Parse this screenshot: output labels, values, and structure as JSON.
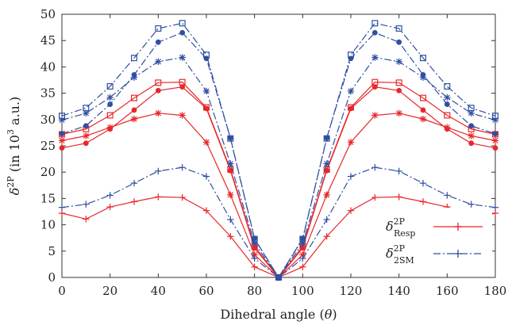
{
  "chart_data": {
    "type": "line",
    "xlabel": "Dihedral angle (θ)",
    "ylabel": "δ2P (in 103 a.u.)",
    "ylabel_parts": {
      "sym": "δ",
      "sup": "2P",
      "pre": " (in 10",
      "exp": "3",
      "post": " a.u.)"
    },
    "xlabel_parts": {
      "text": "Dihedral angle (",
      "var": "θ",
      "close": ")"
    },
    "xlim": [
      0,
      180
    ],
    "ylim": [
      0,
      50
    ],
    "xticks": [
      "0",
      "20",
      "40",
      "60",
      "80",
      "100",
      "120",
      "140",
      "160",
      "180"
    ],
    "yticks": [
      "0",
      "5",
      "10",
      "15",
      "20",
      "25",
      "30",
      "35",
      "40",
      "45",
      "50"
    ],
    "x": [
      0,
      10,
      20,
      30,
      40,
      50,
      60,
      70,
      80,
      90,
      100,
      110,
      120,
      130,
      140,
      150,
      160,
      170,
      180
    ],
    "legend": {
      "placement": "bottom-right",
      "entries": [
        {
          "sym": "δ",
          "sup": "2P",
          "sub": "Resp",
          "color": "#e8272a",
          "dash": "solid"
        },
        {
          "sym": "δ",
          "sup": "2P",
          "sub": "2SM",
          "color": "#2f4fa2",
          "dash": "dashdot"
        }
      ]
    },
    "series": [
      {
        "group": "Resp",
        "marker": "plus",
        "color": "#e8272a",
        "dash": "solid",
        "values": [
          12.2,
          11.1,
          13.4,
          14.4,
          15.3,
          15.2,
          12.7,
          7.8,
          2.0,
          0.0,
          2.0,
          7.8,
          12.7,
          15.2,
          15.3,
          14.4,
          13.4,
          11.1,
          12.2
        ]
      },
      {
        "group": "Resp",
        "marker": "star",
        "color": "#e8272a",
        "dash": "solid",
        "values": [
          26.0,
          26.9,
          28.5,
          30.1,
          31.2,
          30.8,
          25.7,
          15.7,
          4.3,
          0.0,
          4.3,
          15.7,
          25.7,
          30.8,
          31.2,
          30.1,
          28.5,
          26.9,
          26.0
        ]
      },
      {
        "group": "Resp",
        "marker": "circle-filled",
        "color": "#e8272a",
        "dash": "solid",
        "values": [
          24.6,
          25.5,
          28.2,
          31.8,
          35.5,
          36.2,
          32.1,
          20.3,
          5.6,
          0.0,
          5.6,
          20.3,
          32.1,
          36.2,
          35.5,
          31.8,
          28.2,
          25.5,
          24.6
        ]
      },
      {
        "group": "Resp",
        "marker": "square-open",
        "color": "#e8272a",
        "dash": "solid",
        "values": [
          27.2,
          28.2,
          30.8,
          34.1,
          37.0,
          37.1,
          32.3,
          20.5,
          5.9,
          0.0,
          5.9,
          20.5,
          32.3,
          37.1,
          37.0,
          34.1,
          30.8,
          28.2,
          27.2
        ]
      },
      {
        "group": "2SM",
        "marker": "plus",
        "color": "#2f4fa2",
        "dash": "dashdot",
        "values": [
          13.3,
          13.9,
          15.6,
          17.9,
          20.2,
          20.9,
          19.2,
          11.0,
          3.6,
          0.0,
          3.6,
          11.0,
          19.2,
          20.9,
          20.2,
          17.9,
          15.6,
          13.9,
          13.3
        ]
      },
      {
        "group": "2SM",
        "marker": "star",
        "color": "#2f4fa2",
        "dash": "dashdot",
        "values": [
          29.9,
          31.2,
          34.2,
          38.0,
          41.0,
          41.8,
          35.4,
          21.6,
          6.5,
          0.0,
          6.5,
          21.6,
          35.4,
          41.8,
          41.0,
          38.0,
          34.2,
          31.2,
          29.9
        ]
      },
      {
        "group": "2SM",
        "marker": "circle-filled",
        "color": "#2f4fa2",
        "dash": "dashdot",
        "values": [
          27.3,
          28.8,
          32.9,
          38.5,
          44.7,
          46.5,
          41.6,
          26.5,
          7.4,
          0.0,
          7.4,
          26.5,
          41.6,
          46.5,
          44.7,
          38.5,
          32.9,
          28.8,
          27.3
        ]
      },
      {
        "group": "2SM",
        "marker": "square-open",
        "color": "#2f4fa2",
        "dash": "dashdot",
        "values": [
          30.7,
          32.2,
          36.3,
          41.7,
          47.3,
          48.3,
          42.3,
          26.4,
          7.3,
          0.0,
          7.3,
          26.4,
          42.3,
          48.3,
          47.3,
          41.7,
          36.3,
          32.2,
          30.7
        ]
      }
    ]
  }
}
